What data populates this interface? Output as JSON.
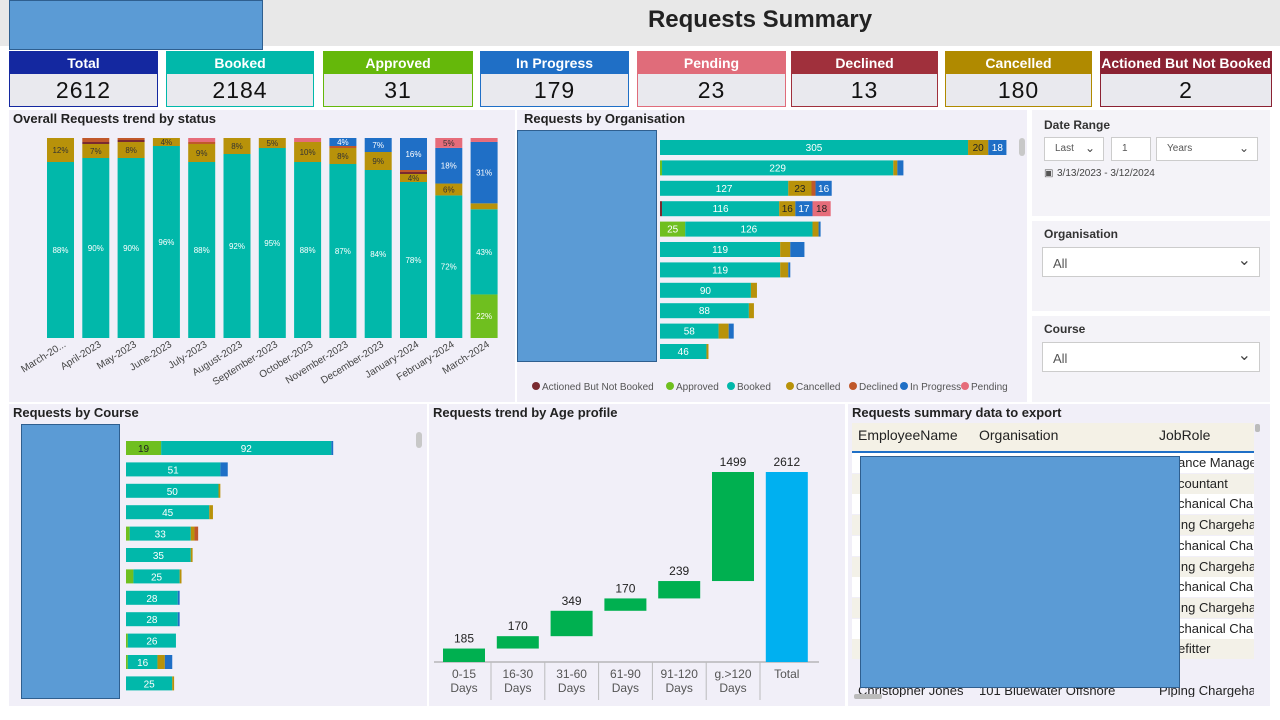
{
  "header": {
    "title": "Requests Summary"
  },
  "colors": {
    "Booked": "#01b8aa",
    "Cancelled": "#b8920a",
    "Approved": "#6fbf1f",
    "In Progress": "#1f6fc6",
    "Pending": "#e66c7a",
    "Declined": "#c0582a",
    "Actioned But Not Booked": "#7a2a30",
    "agebar": "#00b050",
    "total": "#00b0f0"
  },
  "cards": [
    {
      "label": "Total",
      "value": "2612",
      "color": "#1428a0"
    },
    {
      "label": "Booked",
      "value": "2184",
      "color": "#01b8aa"
    },
    {
      "label": "Approved",
      "value": "31",
      "color": "#65b80a"
    },
    {
      "label": "In Progress",
      "value": "179",
      "color": "#1f6fc6"
    },
    {
      "label": "Pending",
      "value": "23",
      "color": "#e06c7a"
    },
    {
      "label": "Declined",
      "value": "13",
      "color": "#a0303c"
    },
    {
      "label": "Cancelled",
      "value": "180",
      "color": "#b08a00"
    },
    {
      "label": "Actioned But Not Booked",
      "value": "2",
      "color": "#8b2232"
    }
  ],
  "trend": {
    "title": "Overall Requests trend by status",
    "categories": [
      "March-20...",
      "April-2023",
      "May-2023",
      "June-2023",
      "July-2023",
      "August-2023",
      "September-2023",
      "October-2023",
      "November-2023",
      "December-2023",
      "January-2024",
      "February-2024",
      "March-2024"
    ]
  },
  "org": {
    "title": "Requests by Organisation"
  },
  "legend": [
    "Actioned But Not Booked",
    "Approved",
    "Booked",
    "Cancelled",
    "Declined",
    "In Progress",
    "Pending"
  ],
  "slicers": {
    "date": {
      "label": "Date Range",
      "mode": "Last",
      "count": "1",
      "unit": "Years",
      "range": "3/13/2023 - 3/12/2024"
    },
    "organisation": {
      "label": "Organisation",
      "value": "All"
    },
    "course": {
      "label": "Course",
      "value": "All"
    }
  },
  "course": {
    "title": "Requests by Course"
  },
  "age": {
    "title": "Requests trend by Age profile"
  },
  "table": {
    "title": "Requests summary data to export",
    "headers": [
      "EmployeeName",
      "Organisation",
      "JobRole"
    ],
    "jobroles": [
      "ance Manage",
      "countant",
      "chanical Char",
      "ing Chargeha",
      "chanical Char",
      "ing Chargeha",
      "chanical Char",
      "ing Chargeha",
      "chanical Char",
      "efitter"
    ],
    "last_row": {
      "name": "Christopher Jones",
      "org": "101 Bluewater Offshore",
      "role": "Piping Chargeha"
    }
  },
  "chart_data": [
    {
      "type": "bar",
      "title": "Overall Requests trend by status",
      "categories": [
        "March-20...",
        "April-2023",
        "May-2023",
        "June-2023",
        "July-2023",
        "August-2023",
        "September-2023",
        "October-2023",
        "November-2023",
        "December-2023",
        "January-2024",
        "February-2024",
        "March-2024"
      ],
      "stacked_percent": true,
      "series": [
        {
          "name": "Booked",
          "values": [
            88,
            90,
            90,
            96,
            88,
            92,
            95,
            88,
            87,
            84,
            78,
            72,
            43
          ]
        },
        {
          "name": "Approved",
          "values": [
            0,
            0,
            0,
            0,
            0,
            0,
            0,
            0,
            0,
            0,
            0,
            0,
            22
          ]
        },
        {
          "name": "Cancelled",
          "values": [
            12,
            7,
            8,
            4,
            9,
            8,
            5,
            10,
            8,
            9,
            4,
            6,
            3
          ]
        },
        {
          "name": "In Progress",
          "values": [
            0,
            0,
            0,
            0,
            0,
            0,
            0,
            0,
            4,
            7,
            16,
            18,
            31
          ]
        },
        {
          "name": "Pending",
          "values": [
            0,
            0,
            0,
            0,
            2,
            0,
            0,
            2,
            0,
            0,
            0,
            5,
            2
          ]
        },
        {
          "name": "Declined",
          "values": [
            0,
            2,
            1,
            0,
            1,
            0,
            0,
            0,
            1,
            0,
            1,
            0,
            0
          ]
        },
        {
          "name": "Actioned But Not Booked",
          "values": [
            0,
            1,
            1,
            0,
            0,
            0,
            0,
            0,
            0,
            0,
            1,
            0,
            0
          ]
        }
      ]
    },
    {
      "type": "bar",
      "title": "Requests by Organisation",
      "orientation": "horizontal",
      "rows": [
        {
          "Booked": 305,
          "Cancelled": 20,
          "In Progress": 18
        },
        {
          "Approved": 2,
          "Booked": 229,
          "Cancelled": 4,
          "In Progress": 6
        },
        {
          "Booked": 127,
          "Cancelled": 23,
          "Declined": 4,
          "In Progress": 16
        },
        {
          "Actioned But Not Booked": 2,
          "Booked": 116,
          "Cancelled": 16,
          "In Progress": 17,
          "Pending": 18
        },
        {
          "Approved": 25,
          "Booked": 126,
          "Cancelled": 6,
          "In Progress": 2
        },
        {
          "Booked": 119,
          "Cancelled": 10,
          "In Progress": 14
        },
        {
          "Booked": 119,
          "Cancelled": 8,
          "In Progress": 2
        },
        {
          "Booked": 90,
          "Cancelled": 6
        },
        {
          "Booked": 88,
          "Cancelled": 5
        },
        {
          "Booked": 58,
          "Cancelled": 10,
          "In Progress": 5
        },
        {
          "Booked": 46,
          "Cancelled": 2
        }
      ]
    },
    {
      "type": "bar",
      "title": "Requests by Course",
      "orientation": "horizontal",
      "rows": [
        {
          "Approved": 19,
          "Booked": 92,
          "In Progress": 1
        },
        {
          "Booked": 51,
          "In Progress": 4
        },
        {
          "Booked": 50,
          "Cancelled": 1
        },
        {
          "Booked": 45,
          "Cancelled": 2
        },
        {
          "Approved": 2,
          "Booked": 33,
          "Cancelled": 2,
          "Declined": 2
        },
        {
          "Booked": 35,
          "Cancelled": 1
        },
        {
          "Approved": 4,
          "Booked": 25,
          "Cancelled": 1
        },
        {
          "Booked": 28,
          "In Progress": 1
        },
        {
          "Booked": 28,
          "In Progress": 1
        },
        {
          "Approved": 1,
          "Booked": 26
        },
        {
          "Approved": 1,
          "Booked": 16,
          "Cancelled": 4,
          "In Progress": 4
        },
        {
          "Booked": 25,
          "Cancelled": 1
        }
      ]
    },
    {
      "type": "bar",
      "subtype": "waterfall",
      "title": "Requests trend by Age profile",
      "categories": [
        "0-15 Days",
        "16-30 Days",
        "31-60 Days",
        "61-90 Days",
        "91-120 Days",
        "g.>120 Days",
        "Total"
      ],
      "values": [
        185,
        170,
        349,
        170,
        239,
        1499,
        2612
      ]
    }
  ]
}
